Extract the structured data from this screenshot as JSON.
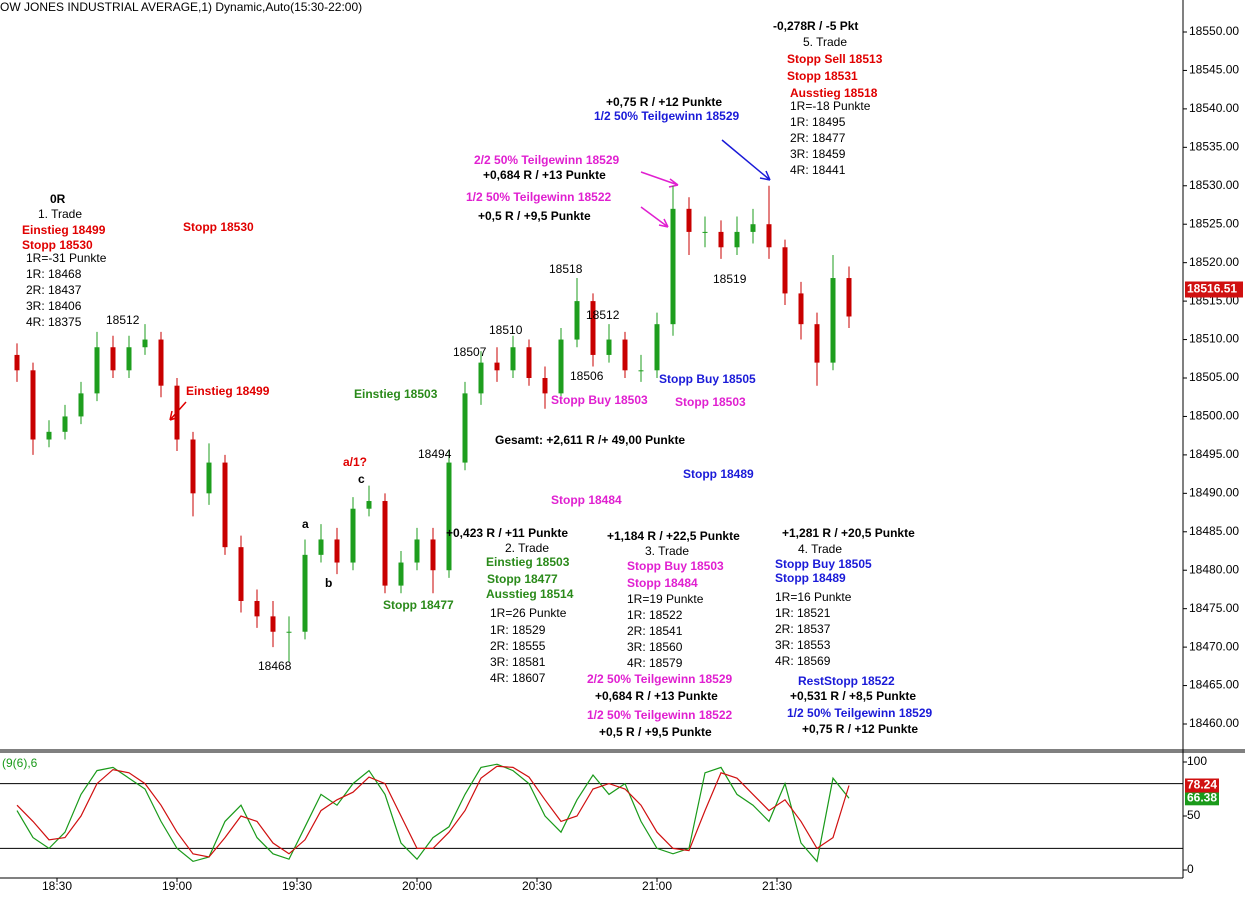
{
  "chart_data": [
    {
      "type": "candlestick",
      "title": "OW JONES INDUSTRIAL AVERAGE,1) Dynamic,Auto(15:30-22:00)",
      "x": [
        1100,
        1104,
        1108,
        1112,
        1116,
        1120,
        1124,
        1128,
        1132,
        1136,
        1140,
        1144,
        1148,
        1152,
        1156,
        1160,
        1164,
        1168,
        1172,
        1176,
        1180,
        1184,
        1188,
        1192,
        1196,
        1200,
        1204,
        1208,
        1212,
        1216,
        1220,
        1224,
        1228,
        1232,
        1236,
        1240,
        1244,
        1248,
        1252,
        1256,
        1260,
        1264,
        1268,
        1272,
        1276,
        1280,
        1284,
        1288,
        1292,
        1296,
        1300,
        1304,
        1308
      ],
      "open": [
        18508,
        18506,
        18497,
        18498,
        18500,
        18503,
        18509,
        18506,
        18509,
        18510,
        18504,
        18497,
        18490,
        18494,
        18483,
        18476,
        18474,
        18472,
        18472,
        18482,
        18484,
        18481,
        18488,
        18489,
        18478,
        18481,
        18484,
        18480,
        18494,
        18503,
        18507,
        18506,
        18509,
        18505,
        18503,
        18510,
        18515,
        18508,
        18510,
        18506,
        18506,
        18512,
        18527,
        18524,
        18524,
        18522,
        18524,
        18525,
        18522,
        18516,
        18512,
        18507,
        18518
      ],
      "high": [
        18509.5,
        18507,
        18499.5,
        18501.5,
        18504.5,
        18511,
        18510.5,
        18510.5,
        18512,
        18511,
        18505,
        18498,
        18496.5,
        18495,
        18484.5,
        18477.5,
        18476,
        18474,
        18484,
        18486,
        18485.5,
        18489.5,
        18491,
        18490,
        18482.5,
        18485.5,
        18485.5,
        18495.5,
        18504.5,
        18508.5,
        18509,
        18510.5,
        18510,
        18506.5,
        18511.5,
        18518,
        18516,
        18512,
        18511,
        18508,
        18513.5,
        18530,
        18528.5,
        18526,
        18525.5,
        18526,
        18527,
        18530,
        18523,
        18517.5,
        18513.5,
        18521,
        18519.5
      ],
      "low": [
        18504.5,
        18495,
        18496,
        18497,
        18499,
        18502,
        18505,
        18505,
        18508,
        18502.5,
        18495.5,
        18487,
        18488.5,
        18482,
        18474.5,
        18472.5,
        18470,
        18468,
        18471,
        18481,
        18479.5,
        18480,
        18487,
        18477,
        18477,
        18480,
        18477,
        18479,
        18493,
        18501.5,
        18504.5,
        18505,
        18504,
        18501,
        18502,
        18509,
        18506.5,
        18507,
        18505,
        18504.5,
        18505,
        18510.5,
        18521,
        18522,
        18520.5,
        18521,
        18522.5,
        18520.5,
        18514.5,
        18510,
        18504,
        18506,
        18511.5
      ],
      "close": [
        18506,
        18497,
        18498,
        18500,
        18503,
        18509,
        18506,
        18509,
        18510,
        18504,
        18497,
        18490,
        18494,
        18483,
        18476,
        18474,
        18472,
        18472,
        18482,
        18484,
        18481,
        18488,
        18489,
        18478,
        18481,
        18484,
        18480,
        18494,
        18503,
        18507,
        18506,
        18509,
        18505,
        18503,
        18510,
        18515,
        18508,
        18510,
        18506,
        18506,
        18512,
        18527,
        18524,
        18524,
        18522,
        18524,
        18525,
        18522,
        18516,
        18512,
        18507,
        18518,
        18513
      ],
      "up_color": "#1e9e1e",
      "down_color": "#c80000",
      "xlim": [
        1095.75,
        1391.5
      ],
      "xticks": [
        {
          "value": 1110,
          "label": "18:30"
        },
        {
          "value": 1140,
          "label": "19:00"
        },
        {
          "value": 1170,
          "label": "19:30"
        },
        {
          "value": 1200,
          "label": "20:00"
        },
        {
          "value": 1230,
          "label": "20:30"
        },
        {
          "value": 1260,
          "label": "21:00"
        },
        {
          "value": 1290,
          "label": "21:30"
        }
      ],
      "ylim": [
        18456.62,
        18554.16
      ],
      "yticks": [
        {
          "value": 18460,
          "label": "18460.00"
        },
        {
          "value": 18465,
          "label": "18465.00"
        },
        {
          "value": 18470,
          "label": "18470.00"
        },
        {
          "value": 18475,
          "label": "18475.00"
        },
        {
          "value": 18480,
          "label": "18480.00"
        },
        {
          "value": 18485,
          "label": "18485.00"
        },
        {
          "value": 18490,
          "label": "18490.00"
        },
        {
          "value": 18495,
          "label": "18495.00"
        },
        {
          "value": 18500,
          "label": "18500.00"
        },
        {
          "value": 18505,
          "label": "18505.00"
        },
        {
          "value": 18510,
          "label": "18510.00"
        },
        {
          "value": 18515,
          "label": "18515.00"
        },
        {
          "value": 18520,
          "label": "18520.00"
        },
        {
          "value": 18525,
          "label": "18525.00"
        },
        {
          "value": 18530,
          "label": "18530.00"
        },
        {
          "value": 18535,
          "label": "18535.00"
        },
        {
          "value": 18540,
          "label": "18540.00"
        },
        {
          "value": 18545,
          "label": "18545.00"
        },
        {
          "value": 18550,
          "label": "18550.00"
        }
      ],
      "last_price": 18516.51,
      "annotations": [
        {
          "text": "Gesamt: +2,611 R /+ 49,00 Punkte",
          "color": "#000000",
          "weight": "bold"
        },
        {
          "text": "0R",
          "color": "#000000",
          "weight": "bold"
        },
        {
          "text": "1. Trade",
          "color": "#000000",
          "weight": "normal"
        },
        {
          "text": "Einstieg 18499",
          "color": "#e00000",
          "weight": "bold"
        },
        {
          "text": "Stopp 18530",
          "color": "#e00000",
          "weight": "bold"
        },
        {
          "text": "1R=-31 Punkte",
          "color": "#000000",
          "weight": "normal"
        },
        {
          "text": "1R: 18468",
          "color": "#000000",
          "weight": "normal"
        },
        {
          "text": "2R: 18437",
          "color": "#000000",
          "weight": "normal"
        },
        {
          "text": "3R: 18406",
          "color": "#000000",
          "weight": "normal"
        },
        {
          "text": "4R: 18375",
          "color": "#000000",
          "weight": "normal"
        },
        {
          "text": "Stopp 18530",
          "color": "#e00000",
          "weight": "bold"
        },
        {
          "text": "Einstieg 18499",
          "color": "#e00000",
          "weight": "bold"
        },
        {
          "text": "18512",
          "color": "#000000",
          "weight": "normal"
        },
        {
          "text": "18468",
          "color": "#000000",
          "weight": "normal"
        },
        {
          "text": "a",
          "color": "#000000",
          "weight": "bold"
        },
        {
          "text": "b",
          "color": "#000000",
          "weight": "bold"
        },
        {
          "text": "c",
          "color": "#000000",
          "weight": "bold"
        },
        {
          "text": "a/1?",
          "color": "#e00000",
          "weight": "bold"
        },
        {
          "text": "18494",
          "color": "#000000",
          "weight": "normal"
        },
        {
          "text": "Einstieg 18503",
          "color": "#2a8a1a",
          "weight": "bold"
        },
        {
          "text": "18507",
          "color": "#000000",
          "weight": "normal"
        },
        {
          "text": "18510",
          "color": "#000000",
          "weight": "normal"
        },
        {
          "text": "18518",
          "color": "#000000",
          "weight": "normal"
        },
        {
          "text": "18512",
          "color": "#000000",
          "weight": "normal"
        },
        {
          "text": "18506",
          "color": "#000000",
          "weight": "normal"
        },
        {
          "text": "Stopp Buy 18503",
          "color": "#e020d0",
          "weight": "bold"
        },
        {
          "text": "Stopp 18503",
          "color": "#e020d0",
          "weight": "bold"
        },
        {
          "text": "Stopp Buy 18505",
          "color": "#1a1ad8",
          "weight": "bold"
        },
        {
          "text": "Stopp 18489",
          "color": "#1a1ad8",
          "weight": "bold"
        },
        {
          "text": "Stopp 18484",
          "color": "#e020d0",
          "weight": "bold"
        },
        {
          "text": "18519",
          "color": "#000000",
          "weight": "normal"
        },
        {
          "text": "Stopp 18477",
          "color": "#2a8a1a",
          "weight": "bold"
        },
        {
          "text": "+0,423 R / +11 Punkte",
          "color": "#000000",
          "weight": "bold"
        },
        {
          "text": "2. Trade",
          "color": "#000000",
          "weight": "normal"
        },
        {
          "text": "Einstieg 18503",
          "color": "#2a8a1a",
          "weight": "bold"
        },
        {
          "text": "Stopp 18477",
          "color": "#2a8a1a",
          "weight": "bold"
        },
        {
          "text": "Ausstieg 18514",
          "color": "#2a8a1a",
          "weight": "bold"
        },
        {
          "text": "1R=26 Punkte",
          "color": "#000000",
          "weight": "normal"
        },
        {
          "text": "1R: 18529",
          "color": "#000000",
          "weight": "normal"
        },
        {
          "text": "2R: 18555",
          "color": "#000000",
          "weight": "normal"
        },
        {
          "text": "3R: 18581",
          "color": "#000000",
          "weight": "normal"
        },
        {
          "text": "4R: 18607",
          "color": "#000000",
          "weight": "normal"
        },
        {
          "text": "+1,184 R / +22,5 Punkte",
          "color": "#000000",
          "weight": "bold"
        },
        {
          "text": "3. Trade",
          "color": "#000000",
          "weight": "normal"
        },
        {
          "text": "Stopp Buy 18503",
          "color": "#e020d0",
          "weight": "bold"
        },
        {
          "text": "Stopp 18484",
          "color": "#e020d0",
          "weight": "bold"
        },
        {
          "text": "1R=19 Punkte",
          "color": "#000000",
          "weight": "normal"
        },
        {
          "text": "1R: 18522",
          "color": "#000000",
          "weight": "normal"
        },
        {
          "text": "2R: 18541",
          "color": "#000000",
          "weight": "normal"
        },
        {
          "text": "3R: 18560",
          "color": "#000000",
          "weight": "normal"
        },
        {
          "text": "4R: 18579",
          "color": "#000000",
          "weight": "normal"
        },
        {
          "text": "2/2 50% Teilgewinn 18529",
          "color": "#e020d0",
          "weight": "bold"
        },
        {
          "text": "+0,684 R / +13 Punkte",
          "color": "#000000",
          "weight": "bold"
        },
        {
          "text": "1/2 50% Teilgewinn 18522",
          "color": "#e020d0",
          "weight": "bold"
        },
        {
          "text": "+0,5 R / +9,5 Punkte",
          "color": "#000000",
          "weight": "bold"
        },
        {
          "text": "+1,281 R / +20,5 Punkte",
          "color": "#000000",
          "weight": "bold"
        },
        {
          "text": "4. Trade",
          "color": "#000000",
          "weight": "normal"
        },
        {
          "text": "Stopp Buy 18505",
          "color": "#1a1ad8",
          "weight": "bold"
        },
        {
          "text": "Stopp 18489",
          "color": "#1a1ad8",
          "weight": "bold"
        },
        {
          "text": "1R=16 Punkte",
          "color": "#000000",
          "weight": "normal"
        },
        {
          "text": "1R: 18521",
          "color": "#000000",
          "weight": "normal"
        },
        {
          "text": "2R: 18537",
          "color": "#000000",
          "weight": "normal"
        },
        {
          "text": "3R: 18553",
          "color": "#000000",
          "weight": "normal"
        },
        {
          "text": "4R: 18569",
          "color": "#000000",
          "weight": "normal"
        },
        {
          "text": "RestStopp 18522",
          "color": "#1a1ad8",
          "weight": "bold"
        },
        {
          "text": "+0,531 R / +8,5 Punkte",
          "color": "#000000",
          "weight": "bold"
        },
        {
          "text": "1/2 50% Teilgewinn 18529",
          "color": "#1a1ad8",
          "weight": "bold"
        },
        {
          "text": "+0,75 R / +12 Punkte",
          "color": "#000000",
          "weight": "bold"
        },
        {
          "text": "+0,75 R / +12 Punkte",
          "color": "#000000",
          "weight": "bold"
        },
        {
          "text": "1/2 50% Teilgewinn 18529",
          "color": "#1a1ad8",
          "weight": "bold"
        },
        {
          "text": "2/2 50% Teilgewinn 18529",
          "color": "#e020d0",
          "weight": "bold"
        },
        {
          "text": "+0,684 R / +13 Punkte",
          "color": "#000000",
          "weight": "bold"
        },
        {
          "text": "1/2 50% Teilgewinn 18522",
          "color": "#e020d0",
          "weight": "bold"
        },
        {
          "text": "+0,5 R / +9,5 Punkte",
          "color": "#000000",
          "weight": "bold"
        },
        {
          "text": "-0,278R / -5 Pkt",
          "color": "#000000",
          "weight": "bold"
        },
        {
          "text": "5. Trade",
          "color": "#000000",
          "weight": "normal"
        },
        {
          "text": "Stopp Sell 18513",
          "color": "#e00000",
          "weight": "bold"
        },
        {
          "text": "Stopp 18531",
          "color": "#e00000",
          "weight": "bold"
        },
        {
          "text": "Ausstieg 18518",
          "color": "#e00000",
          "weight": "bold"
        },
        {
          "text": "1R=-18 Punkte",
          "color": "#000000",
          "weight": "normal"
        },
        {
          "text": "1R: 18495",
          "color": "#000000",
          "weight": "normal"
        },
        {
          "text": "2R: 18477",
          "color": "#000000",
          "weight": "normal"
        },
        {
          "text": "3R: 18459",
          "color": "#000000",
          "weight": "normal"
        },
        {
          "text": "4R: 18441",
          "color": "#000000",
          "weight": "normal"
        }
      ]
    },
    {
      "type": "line",
      "title": "(9(6),6",
      "x": [
        1100,
        1104,
        1108,
        1112,
        1116,
        1120,
        1124,
        1128,
        1132,
        1136,
        1140,
        1144,
        1148,
        1152,
        1156,
        1160,
        1164,
        1168,
        1172,
        1176,
        1180,
        1184,
        1188,
        1192,
        1196,
        1200,
        1204,
        1208,
        1212,
        1216,
        1220,
        1224,
        1228,
        1232,
        1236,
        1240,
        1244,
        1248,
        1252,
        1256,
        1260,
        1264,
        1268,
        1272,
        1276,
        1280,
        1284,
        1288,
        1292,
        1296,
        1300,
        1304,
        1308
      ],
      "series": [
        {
          "color": "#1a9a1a",
          "values": [
            55,
            30,
            20,
            35,
            70,
            92,
            95,
            85,
            75,
            45,
            20,
            8,
            12,
            45,
            60,
            30,
            15,
            10,
            40,
            70,
            60,
            80,
            92,
            70,
            25,
            10,
            30,
            40,
            70,
            95,
            98,
            92,
            80,
            50,
            35,
            65,
            88,
            70,
            80,
            45,
            20,
            15,
            20,
            90,
            95,
            70,
            60,
            45,
            80,
            25,
            8,
            85,
            66.38
          ]
        },
        {
          "color": "#d01010",
          "values": [
            60,
            45,
            28,
            30,
            50,
            80,
            93,
            90,
            80,
            60,
            35,
            15,
            12,
            30,
            50,
            45,
            25,
            15,
            28,
            55,
            65,
            72,
            86,
            80,
            50,
            20,
            20,
            35,
            55,
            85,
            96,
            95,
            86,
            65,
            45,
            50,
            75,
            80,
            75,
            60,
            35,
            20,
            18,
            55,
            90,
            85,
            70,
            55,
            65,
            45,
            20,
            30,
            78.24
          ]
        }
      ],
      "xlim": [
        1095.75,
        1391.5
      ],
      "ylim": [
        -7.41,
        109.26
      ],
      "yticks": [
        0,
        50,
        100
      ],
      "levels": [
        20,
        80
      ]
    }
  ]
}
